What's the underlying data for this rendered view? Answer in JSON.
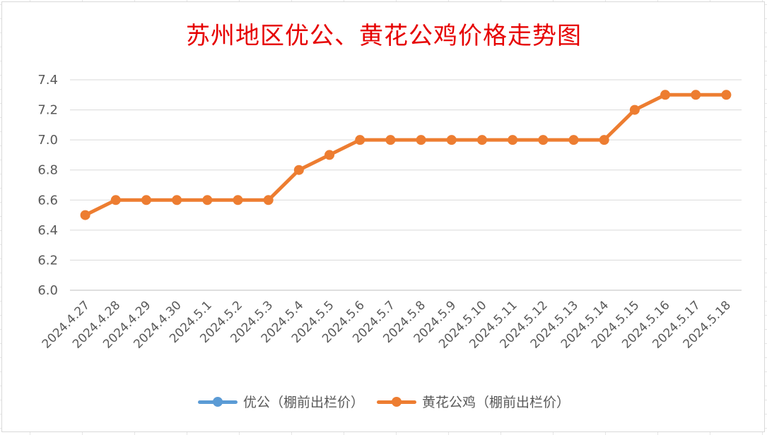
{
  "chart_data": {
    "type": "line",
    "title": "苏州地区优公、黄花公鸡价格走势图",
    "xlabel": "",
    "ylabel": "",
    "ylim": [
      6.0,
      7.4
    ],
    "yticks": [
      "6.0",
      "6.2",
      "6.4",
      "6.6",
      "6.8",
      "7.0",
      "7.2",
      "7.4"
    ],
    "grid": true,
    "legend_position": "bottom",
    "categories": [
      "2024.4.27",
      "2024.4.28",
      "2024.4.29",
      "2024.4.30",
      "2024.5.1",
      "2024.5.2",
      "2024.5.3",
      "2024.5.4",
      "2024.5.5",
      "2024.5.6",
      "2024.5.7",
      "2024.5.8",
      "2024.5.9",
      "2024.5.10",
      "2024.5.11",
      "2024.5.12",
      "2024.5.13",
      "2024.5.14",
      "2024.5.15",
      "2024.5.16",
      "2024.5.17",
      "2024.5.18"
    ],
    "series": [
      {
        "name": "优公（棚前出栏价）",
        "color": "#5b9bd5",
        "values": [
          null,
          null,
          null,
          null,
          null,
          null,
          null,
          null,
          null,
          null,
          null,
          null,
          null,
          null,
          null,
          null,
          null,
          null,
          null,
          null,
          null,
          null
        ]
      },
      {
        "name": "黄花公鸡（棚前出栏价）",
        "color": "#ed7d31",
        "values": [
          6.5,
          6.6,
          6.6,
          6.6,
          6.6,
          6.6,
          6.6,
          6.8,
          6.9,
          7.0,
          7.0,
          7.0,
          7.0,
          7.0,
          7.0,
          7.0,
          7.0,
          7.0,
          7.2,
          7.3,
          7.3,
          7.3
        ]
      }
    ]
  }
}
